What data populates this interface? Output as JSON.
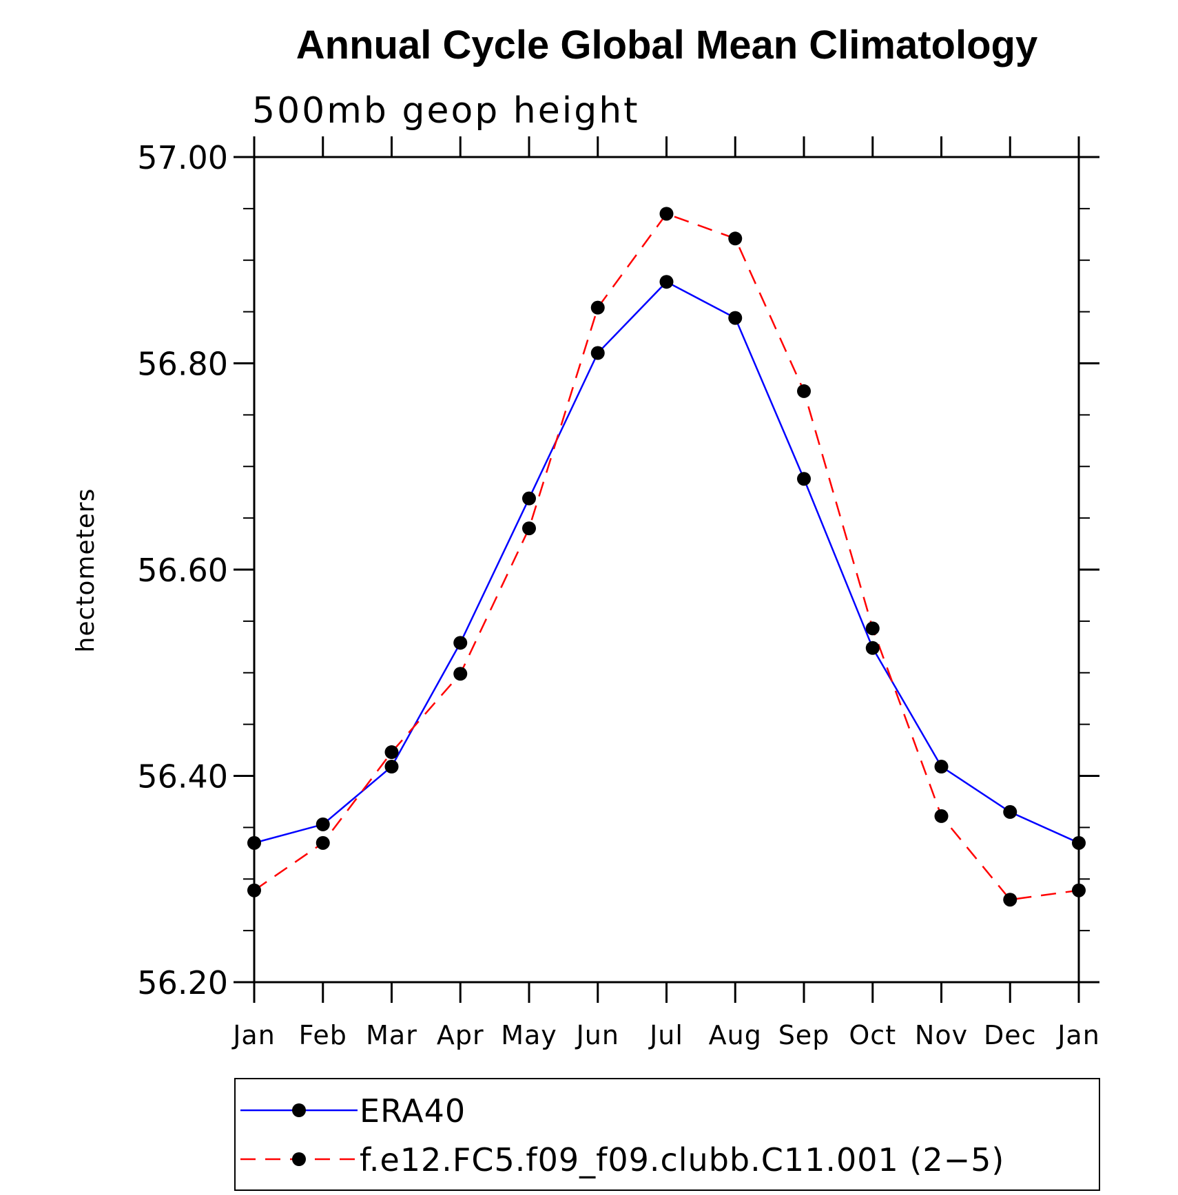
{
  "chart_data": {
    "type": "line",
    "title": "Annual Cycle Global Mean Climatology",
    "subtitle": "500mb geop height",
    "xlabel": "",
    "ylabel": "hectometers",
    "categories": [
      "Jan",
      "Feb",
      "Mar",
      "Apr",
      "May",
      "Jun",
      "Jul",
      "Aug",
      "Sep",
      "Oct",
      "Nov",
      "Dec",
      "Jan"
    ],
    "ylim": [
      56.2,
      57.0
    ],
    "yticks": [
      "56.20",
      "56.40",
      "56.60",
      "56.80",
      "57.00"
    ],
    "grid": false,
    "legend_position": "bottom",
    "series": [
      {
        "name": "ERA40",
        "color": "#0000ff",
        "line_style": "solid",
        "marker": "filled-circle",
        "values": [
          56.335,
          56.353,
          56.409,
          56.529,
          56.669,
          56.81,
          56.879,
          56.844,
          56.688,
          56.524,
          56.409,
          56.365,
          56.335
        ]
      },
      {
        "name": "f.e12.FC5.f09_f09.clubb.C11.001 (2−5)",
        "color": "#ff0000",
        "line_style": "dashed",
        "marker": "filled-circle",
        "values": [
          56.289,
          56.335,
          56.423,
          56.499,
          56.64,
          56.854,
          56.945,
          56.921,
          56.773,
          56.543,
          56.361,
          56.28,
          56.289
        ]
      }
    ]
  }
}
